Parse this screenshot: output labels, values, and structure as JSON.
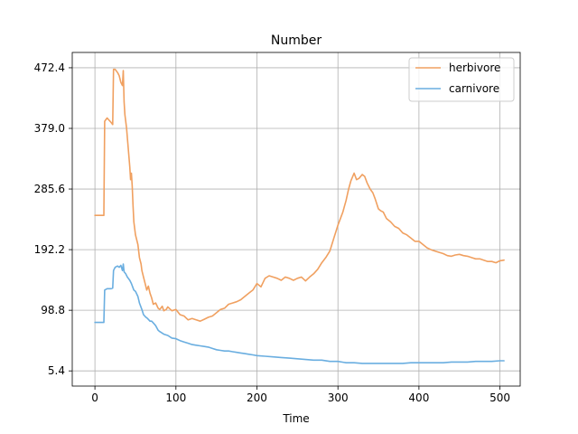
{
  "chart_data": {
    "type": "line",
    "title": "Number",
    "xlabel": "Time",
    "ylabel": "",
    "xlim": [
      -28,
      525
    ],
    "ylim": [
      -18,
      496
    ],
    "xticks": [
      0,
      100,
      200,
      300,
      400,
      500
    ],
    "yticks": [
      5.4,
      98.8,
      192.2,
      285.6,
      379.0,
      472.4
    ],
    "ytick_labels": [
      "5.4",
      "98.8",
      "192.2",
      "285.6",
      "379.0",
      "472.4"
    ],
    "grid": true,
    "legend_position": "top-right",
    "colors": {
      "herbivore": "#f0a060",
      "carnivore": "#6aaee0"
    },
    "series": [
      {
        "name": "herbivore",
        "color": "#f0a060",
        "x": [
          0,
          10,
          11,
          12,
          15,
          20,
          22,
          23,
          25,
          28,
          30,
          32,
          34,
          35,
          36,
          37,
          39,
          41,
          43,
          44,
          45,
          46,
          47,
          48,
          50,
          53,
          55,
          57,
          58,
          60,
          62,
          64,
          66,
          68,
          70,
          72,
          75,
          78,
          80,
          83,
          85,
          88,
          90,
          95,
          100,
          105,
          110,
          115,
          120,
          125,
          130,
          135,
          140,
          145,
          150,
          155,
          160,
          165,
          170,
          175,
          180,
          185,
          190,
          195,
          200,
          205,
          210,
          215,
          220,
          225,
          230,
          235,
          240,
          245,
          250,
          255,
          260,
          265,
          270,
          275,
          280,
          285,
          290,
          295,
          300,
          303,
          306,
          310,
          313,
          316,
          320,
          323,
          326,
          330,
          333,
          336,
          340,
          343,
          346,
          350,
          353,
          356,
          360,
          365,
          370,
          375,
          380,
          385,
          390,
          395,
          400,
          405,
          410,
          415,
          420,
          425,
          430,
          435,
          440,
          445,
          450,
          455,
          460,
          465,
          470,
          475,
          480,
          485,
          490,
          495,
          500,
          505
        ],
        "values": [
          245,
          245,
          245,
          390,
          395,
          388,
          385,
          470,
          470,
          465,
          460,
          450,
          445,
          468,
          420,
          400,
          380,
          350,
          320,
          300,
          310,
          290,
          260,
          235,
          215,
          200,
          180,
          170,
          160,
          150,
          140,
          130,
          136,
          125,
          118,
          108,
          110,
          102,
          100,
          105,
          98,
          100,
          104,
          98,
          100,
          92,
          90,
          84,
          86,
          84,
          82,
          85,
          88,
          90,
          95,
          100,
          102,
          108,
          110,
          112,
          115,
          120,
          125,
          130,
          140,
          135,
          148,
          152,
          150,
          148,
          145,
          150,
          148,
          145,
          148,
          150,
          144,
          150,
          155,
          162,
          172,
          180,
          190,
          210,
          230,
          240,
          250,
          268,
          285,
          298,
          310,
          300,
          302,
          308,
          305,
          295,
          285,
          280,
          270,
          255,
          252,
          250,
          240,
          235,
          228,
          225,
          218,
          215,
          210,
          205,
          205,
          200,
          195,
          192,
          190,
          188,
          186,
          183,
          182,
          184,
          185,
          183,
          182,
          180,
          178,
          178,
          176,
          174,
          174,
          172,
          175,
          176
        ]
      },
      {
        "name": "carnivore",
        "color": "#6aaee0",
        "x": [
          0,
          10,
          11,
          12,
          15,
          20,
          22,
          23,
          25,
          28,
          30,
          32,
          34,
          35,
          36,
          38,
          40,
          43,
          45,
          48,
          50,
          53,
          55,
          58,
          60,
          63,
          65,
          68,
          70,
          73,
          75,
          78,
          80,
          85,
          90,
          95,
          100,
          105,
          110,
          115,
          120,
          125,
          130,
          135,
          140,
          145,
          150,
          155,
          160,
          165,
          170,
          175,
          180,
          185,
          190,
          195,
          200,
          210,
          220,
          230,
          240,
          250,
          260,
          270,
          280,
          290,
          300,
          310,
          320,
          330,
          340,
          350,
          360,
          370,
          380,
          390,
          400,
          410,
          420,
          430,
          440,
          450,
          460,
          470,
          480,
          490,
          500,
          505
        ],
        "values": [
          80,
          80,
          80,
          130,
          132,
          132,
          133,
          160,
          165,
          167,
          165,
          168,
          160,
          170,
          158,
          155,
          150,
          145,
          140,
          130,
          128,
          120,
          110,
          100,
          92,
          88,
          86,
          82,
          82,
          78,
          75,
          68,
          66,
          62,
          60,
          56,
          55,
          52,
          50,
          48,
          46,
          45,
          44,
          43,
          42,
          40,
          38,
          37,
          36,
          36,
          35,
          34,
          33,
          32,
          31,
          30,
          29,
          28,
          27,
          26,
          25,
          24,
          23,
          22,
          22,
          20,
          20,
          18,
          18,
          17,
          17,
          17,
          17,
          17,
          17,
          18,
          18,
          18,
          18,
          18,
          19,
          19,
          19,
          20,
          20,
          20,
          21,
          21
        ]
      }
    ]
  }
}
